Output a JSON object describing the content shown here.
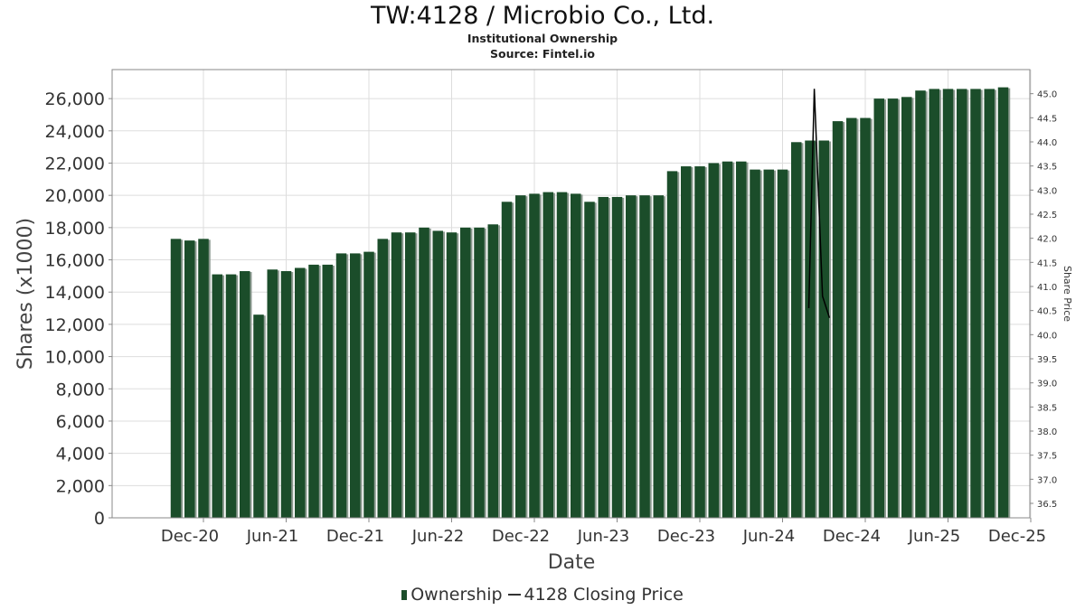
{
  "header": {
    "title": "TW:4128 / Microbio Co., Ltd.",
    "subtitle": "Institutional Ownership",
    "source": "Source: Fintel.io"
  },
  "legend": {
    "ownership_label": "Ownership",
    "price_label": "4128 Closing Price"
  },
  "colors": {
    "bar": "#1b4d2a",
    "bar_shadow": "#8c9a90",
    "price_line": "#000000",
    "grid": "#dddddd"
  },
  "chart_data": {
    "type": "bar",
    "title": "TW:4128 / Microbio Co., Ltd.",
    "xlabel": "Date",
    "ylabel": "Shares (x1000)",
    "y2label": "Share Price",
    "ylim": [
      0,
      27800
    ],
    "y2lim": [
      36.2,
      45.5
    ],
    "y_ticks": [
      "0",
      "2,000",
      "4,000",
      "6,000",
      "8,000",
      "10,000",
      "12,000",
      "14,000",
      "16,000",
      "18,000",
      "20,000",
      "22,000",
      "24,000",
      "26,000"
    ],
    "y_tick_values": [
      0,
      2000,
      4000,
      6000,
      8000,
      10000,
      12000,
      14000,
      16000,
      18000,
      20000,
      22000,
      24000,
      26000
    ],
    "y2_ticks": [
      "36.5",
      "37.0",
      "37.5",
      "38.0",
      "38.5",
      "39.0",
      "39.5",
      "40.0",
      "40.5",
      "41.0",
      "41.5",
      "42.0",
      "42.5",
      "43.0",
      "43.5",
      "44.0",
      "44.5",
      "45.0"
    ],
    "y2_tick_values": [
      36.5,
      37.0,
      37.5,
      38.0,
      38.5,
      39.0,
      39.5,
      40.0,
      40.5,
      41.0,
      41.5,
      42.0,
      42.5,
      43.0,
      43.5,
      44.0,
      44.5,
      45.0
    ],
    "x_tick_labels": [
      "Dec-20",
      "Jun-21",
      "Dec-21",
      "Jun-22",
      "Dec-22",
      "Jun-23",
      "Dec-23",
      "Jun-24",
      "Dec-24",
      "Jun-25",
      "Dec-25"
    ],
    "x_tick_months": [
      0,
      6,
      12,
      18,
      24,
      30,
      36,
      42,
      48,
      54,
      60
    ],
    "grid": true,
    "legend_position": "bottom-center",
    "series": [
      {
        "name": "Ownership",
        "kind": "bar",
        "x_months": [
          -2,
          -1,
          0,
          1,
          2,
          3,
          4,
          5,
          6,
          7,
          8,
          9,
          10,
          11,
          12,
          13,
          14,
          15,
          16,
          17,
          18,
          19,
          20,
          21,
          22,
          23,
          24,
          25,
          26,
          27,
          28,
          29,
          30,
          31,
          32,
          33,
          34,
          35,
          36,
          37,
          38,
          39,
          40,
          41,
          42,
          43,
          44,
          45,
          46,
          47,
          48,
          49,
          50,
          51,
          52,
          53,
          54,
          55,
          56,
          57,
          58
        ],
        "values": [
          17300,
          17200,
          17300,
          15100,
          15100,
          15300,
          12600,
          15400,
          15300,
          15500,
          15700,
          15700,
          16400,
          16400,
          16500,
          17300,
          17700,
          17700,
          18000,
          17800,
          17700,
          18000,
          18000,
          18200,
          19600,
          20000,
          20100,
          20200,
          20200,
          20100,
          19600,
          19900,
          19900,
          20000,
          20000,
          20000,
          21500,
          21800,
          21800,
          22000,
          22100,
          22100,
          21600,
          21600,
          21600,
          23300,
          23400,
          23400,
          24600,
          24800,
          24800,
          26000,
          26000,
          26100,
          26500,
          26600,
          26600,
          26600,
          26600,
          26600,
          26700
        ]
      },
      {
        "name": "4128 Closing Price",
        "kind": "line",
        "x_months": [
          43.9,
          44.3,
          44.9,
          45.4
        ],
        "values": [
          40.55,
          45.1,
          40.8,
          40.35
        ]
      }
    ]
  }
}
